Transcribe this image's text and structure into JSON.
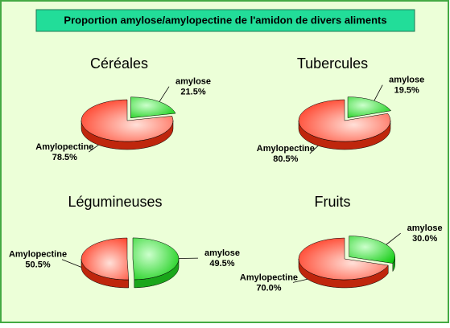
{
  "title": "Proportion amylose/amylopectine de l'amidon de divers aliments",
  "chart_data": [
    {
      "type": "pie",
      "title": "Céréales",
      "categories": [
        "amylose",
        "Amylopectine"
      ],
      "values": [
        21.5,
        78.5
      ],
      "value_labels": [
        "21.5%",
        "78.5%"
      ],
      "colors": [
        "#22dd22",
        "#ff3311"
      ]
    },
    {
      "type": "pie",
      "title": "Tubercules",
      "categories": [
        "amylose",
        "Amylopectine"
      ],
      "values": [
        19.5,
        80.5
      ],
      "value_labels": [
        "19.5%",
        "80.5%"
      ],
      "colors": [
        "#22dd22",
        "#ff3311"
      ]
    },
    {
      "type": "pie",
      "title": "Légumineuses",
      "categories": [
        "amylose",
        "Amylopectine"
      ],
      "values": [
        49.5,
        50.5
      ],
      "value_labels": [
        "49.5%",
        "50.5%"
      ],
      "colors": [
        "#22dd22",
        "#ff3311"
      ]
    },
    {
      "type": "pie",
      "title": "Fruits",
      "categories": [
        "amylose",
        "Amylopectine"
      ],
      "values": [
        30.0,
        70.0
      ],
      "value_labels": [
        "30.0%",
        "70.0%"
      ],
      "colors": [
        "#22dd22",
        "#ff3311"
      ]
    }
  ]
}
